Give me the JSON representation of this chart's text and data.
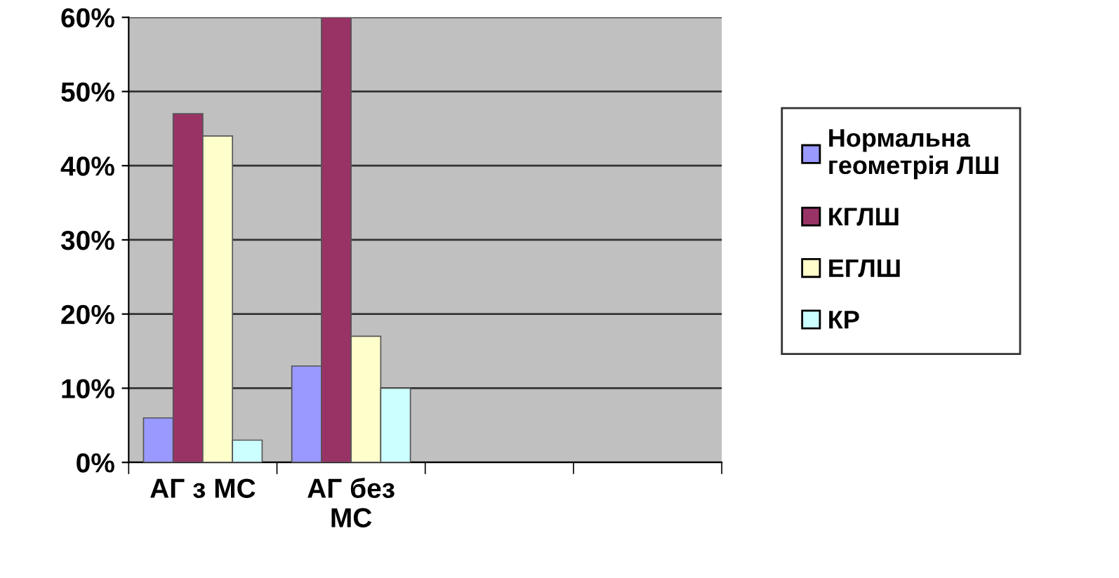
{
  "chart_data": {
    "type": "bar",
    "categories": [
      "АГ з МС",
      "АГ без МС",
      null,
      null
    ],
    "series": [
      {
        "name": "Нормальна геометрія ЛШ",
        "color": "#9999ff",
        "values": [
          6,
          13,
          null,
          null
        ]
      },
      {
        "name": "КГЛШ",
        "color": "#993366",
        "values": [
          47,
          60,
          null,
          null
        ]
      },
      {
        "name": "ЕГЛШ",
        "color": "#ffffcc",
        "values": [
          44,
          17,
          null,
          null
        ]
      },
      {
        "name": "КР",
        "color": "#ccffff",
        "values": [
          3,
          10,
          null,
          null
        ]
      }
    ],
    "ylim": [
      0,
      60
    ],
    "yticks": [
      {
        "value": 0,
        "label": "0%"
      },
      {
        "value": 10,
        "label": "10%"
      },
      {
        "value": 20,
        "label": "20%"
      },
      {
        "value": 30,
        "label": "30%"
      },
      {
        "value": 40,
        "label": "40%"
      },
      {
        "value": 50,
        "label": "50%"
      },
      {
        "value": 60,
        "label": "60%"
      }
    ],
    "grid": "y",
    "legend": "right"
  }
}
